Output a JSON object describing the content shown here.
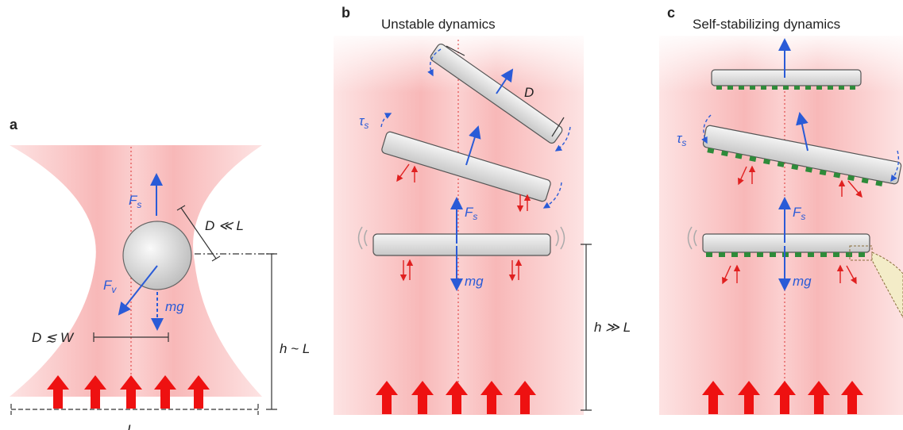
{
  "panel_a": {
    "label": "a",
    "force_up": {
      "main": "F",
      "sub": "s"
    },
    "size": "D ≪ L",
    "force_v": {
      "main": "F",
      "sub": "v"
    },
    "weight": "mg",
    "width": "D ≲ W",
    "height": "h ~ L",
    "base": "L"
  },
  "panel_b": {
    "label": "b",
    "title": "Unstable dynamics",
    "size": "D",
    "torque": {
      "main": "τ",
      "sub": "s"
    },
    "force_up": {
      "main": "F",
      "sub": "s"
    },
    "weight": "mg",
    "height": "h ≫ L"
  },
  "panel_c": {
    "label": "c",
    "title": "Self-stabilizing dynamics",
    "torque": {
      "main": "τ",
      "sub": "s"
    },
    "force_up": {
      "main": "F",
      "sub": "s"
    },
    "weight": "mg"
  }
}
